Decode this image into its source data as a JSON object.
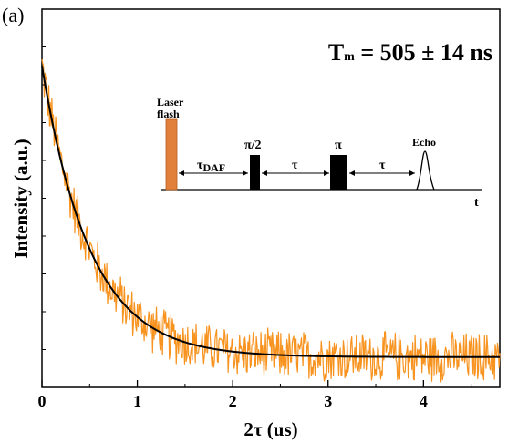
{
  "chart_data": {
    "type": "line",
    "panel_label": "(a)",
    "xlabel": "2τ (us)",
    "ylabel": "Intensity (a.u.)",
    "xlim": [
      0,
      4.8
    ],
    "ylim": [
      0,
      1.0
    ],
    "x_ticks": [
      0,
      1,
      2,
      3,
      4
    ],
    "y_ticks_labeled": false,
    "grid": false,
    "annotation": {
      "prefix": "T",
      "subscript": "m",
      "text": " = 505 ± 14 ns"
    },
    "series": [
      {
        "kind": "noisy-data",
        "color": "#f7931e",
        "x_start": 0,
        "x_end": 4.8,
        "points": 600,
        "noise_amplitude": 0.06
      },
      {
        "kind": "exponential-fit",
        "color": "#000000",
        "model": "y = y0 + A * exp(-x / tau)",
        "y0": 0.08,
        "A": 0.77,
        "tau": 0.505,
        "x_start": 0,
        "x_end": 4.8
      }
    ],
    "pulse_sequence": {
      "laser_label_line1": "Laser",
      "laser_label_line2": "flash",
      "laser_color": "#e0803a",
      "delay1_symbol": "τ",
      "delay1_subscript": "DAF",
      "pulse1_label": "π/2",
      "delay2_label": "τ",
      "pulse2_label": "π",
      "delay3_label": "τ",
      "echo_label": "Echo",
      "time_axis_label": "t"
    }
  }
}
